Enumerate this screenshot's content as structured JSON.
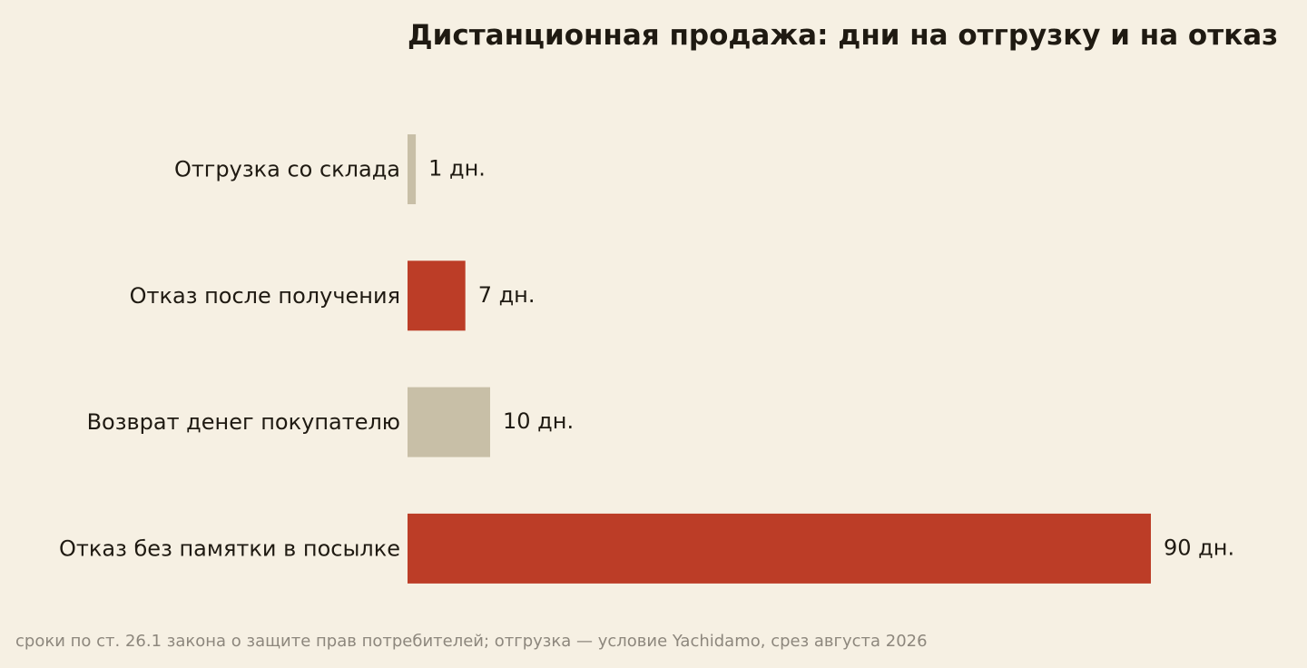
{
  "chart_data": {
    "type": "bar",
    "orientation": "horizontal",
    "title": "Дистанционная продажа: дни на отгрузку и на отказ",
    "categories": [
      "Отгрузка со склада",
      "Отказ после получения",
      "Возврат денег покупателю",
      "Отказ без памятки в посылке"
    ],
    "values": [
      1,
      7,
      10,
      90
    ],
    "value_labels": [
      "1 дн.",
      "7 дн.",
      "10 дн.",
      "90 дн."
    ],
    "bar_colors": [
      "#c8bfa7",
      "#bc3d27",
      "#c8bfa7",
      "#bc3d27"
    ],
    "xlim": [
      0,
      90
    ],
    "grid": false,
    "legend": "none"
  },
  "footnote": "сроки по ст. 26.1 закона о защите прав потребителей; отгрузка — условие Yachidamo, срез августа 2026",
  "colors": {
    "background": "#f6f0e3",
    "text": "#1f1a12",
    "muted": "#8d877d",
    "accent": "#bc3d27",
    "neutral": "#c8bfa7"
  }
}
